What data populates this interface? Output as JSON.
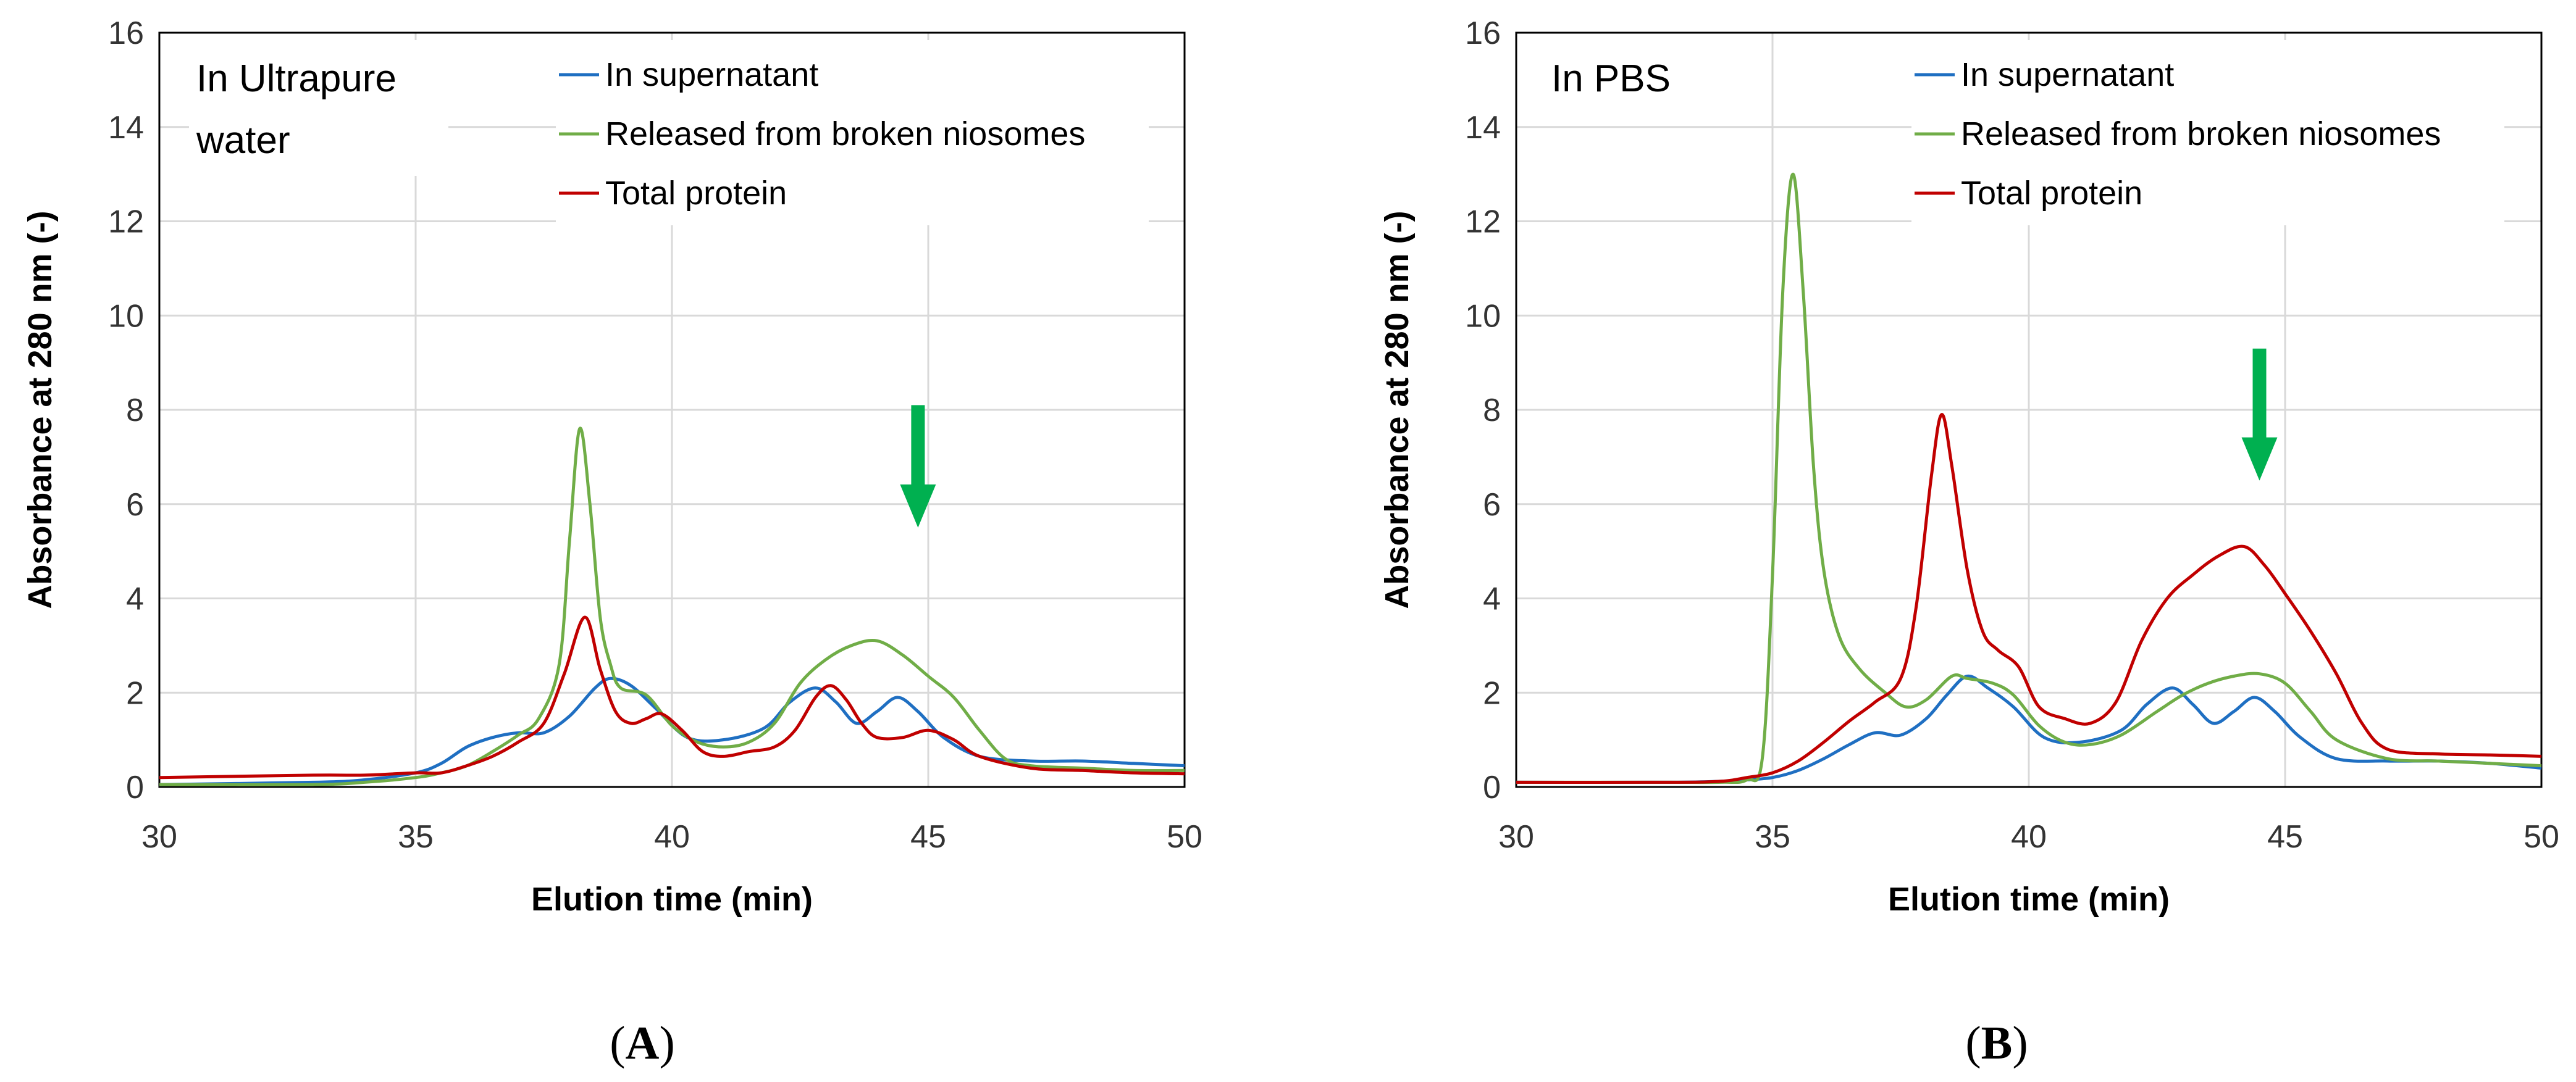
{
  "chart_data": [
    {
      "type": "line",
      "panel_label": "A",
      "title": "In Ultrapure water",
      "title_lines": [
        "In Ultrapure",
        "water"
      ],
      "xlabel": "Elution time (min)",
      "ylabel": "Absorbance at 280 nm (-)",
      "xlim": [
        30,
        50
      ],
      "ylim": [
        0,
        16
      ],
      "xticks": [
        30,
        35,
        40,
        45,
        50
      ],
      "yticks": [
        0,
        2,
        4,
        6,
        8,
        10,
        12,
        14,
        16
      ],
      "grid": true,
      "legend_position": "top-center",
      "arrow": {
        "x": 44.8,
        "y_from": 8.1,
        "y_to": 5.5,
        "color": "#00b050"
      },
      "series": [
        {
          "name": "In supernatant",
          "color": "#1f6fc2",
          "x": [
            30,
            33,
            34,
            35,
            35.5,
            36,
            36.5,
            37,
            37.5,
            38,
            38.5,
            38.8,
            39.2,
            39.7,
            40.3,
            41,
            41.8,
            42.3,
            42.8,
            43.2,
            43.6,
            44,
            44.4,
            44.8,
            45.3,
            46,
            47,
            48,
            49,
            50
          ],
          "y": [
            0.05,
            0.1,
            0.15,
            0.3,
            0.5,
            0.85,
            1.05,
            1.15,
            1.15,
            1.5,
            2.1,
            2.3,
            2.15,
            1.65,
            1.05,
            1.0,
            1.25,
            1.8,
            2.1,
            1.8,
            1.35,
            1.6,
            1.9,
            1.6,
            1.05,
            0.65,
            0.55,
            0.55,
            0.5,
            0.45
          ]
        },
        {
          "name": "Released from broken niosomes",
          "color": "#70ad47",
          "x": [
            30,
            33,
            34,
            35,
            35.5,
            36,
            36.5,
            37,
            37.4,
            37.8,
            38,
            38.2,
            38.4,
            38.6,
            38.8,
            39,
            39.5,
            40,
            40.5,
            41,
            41.5,
            42,
            42.5,
            43,
            43.5,
            44,
            44.5,
            45,
            45.5,
            46,
            46.5,
            47,
            48,
            49,
            50
          ],
          "y": [
            0.05,
            0.05,
            0.1,
            0.2,
            0.3,
            0.45,
            0.75,
            1.1,
            1.45,
            2.6,
            5.2,
            7.6,
            6.0,
            3.6,
            2.6,
            2.1,
            1.95,
            1.3,
            0.95,
            0.85,
            0.95,
            1.35,
            2.2,
            2.7,
            3.0,
            3.1,
            2.8,
            2.35,
            1.9,
            1.2,
            0.6,
            0.45,
            0.4,
            0.35,
            0.35
          ]
        },
        {
          "name": "Total protein",
          "color": "#c00000",
          "x": [
            30,
            33,
            34,
            35,
            35.5,
            36,
            36.5,
            37,
            37.5,
            37.9,
            38.3,
            38.6,
            38.9,
            39.2,
            39.5,
            39.8,
            40.2,
            40.6,
            41,
            41.5,
            42,
            42.4,
            42.8,
            43.1,
            43.4,
            43.7,
            44,
            44.5,
            45,
            45.5,
            46,
            47,
            48,
            49,
            50
          ],
          "y": [
            0.2,
            0.25,
            0.25,
            0.3,
            0.3,
            0.45,
            0.65,
            0.95,
            1.35,
            2.4,
            3.6,
            2.5,
            1.6,
            1.35,
            1.45,
            1.55,
            1.2,
            0.75,
            0.65,
            0.75,
            0.85,
            1.2,
            1.9,
            2.15,
            1.85,
            1.35,
            1.05,
            1.05,
            1.2,
            1.0,
            0.65,
            0.4,
            0.35,
            0.3,
            0.28
          ]
        }
      ]
    },
    {
      "type": "line",
      "panel_label": "B",
      "title": "In PBS",
      "title_lines": [
        "In PBS"
      ],
      "xlabel": "Elution time (min)",
      "ylabel": "Absorbance at 280 nm (-)",
      "xlim": [
        30,
        50
      ],
      "ylim": [
        0,
        16
      ],
      "xticks": [
        30,
        35,
        40,
        45,
        50
      ],
      "yticks": [
        0,
        2,
        4,
        6,
        8,
        10,
        12,
        14,
        16
      ],
      "grid": true,
      "legend_position": "top-center",
      "arrow": {
        "x": 44.5,
        "y_from": 9.3,
        "y_to": 6.5,
        "color": "#00b050"
      },
      "series": [
        {
          "name": "In supernatant",
          "color": "#1f6fc2",
          "x": [
            30,
            33,
            34,
            34.5,
            35,
            35.5,
            36,
            36.5,
            37,
            37.5,
            38,
            38.4,
            38.8,
            39.2,
            39.7,
            40.3,
            41,
            41.8,
            42.3,
            42.8,
            43.2,
            43.6,
            44,
            44.4,
            44.8,
            45.3,
            46,
            47,
            48,
            49,
            50
          ],
          "y": [
            0.1,
            0.1,
            0.12,
            0.15,
            0.2,
            0.35,
            0.6,
            0.9,
            1.15,
            1.1,
            1.45,
            1.95,
            2.35,
            2.1,
            1.7,
            1.05,
            0.95,
            1.2,
            1.75,
            2.1,
            1.75,
            1.35,
            1.6,
            1.9,
            1.6,
            1.05,
            0.6,
            0.55,
            0.55,
            0.5,
            0.4
          ]
        },
        {
          "name": "Released from broken niosomes",
          "color": "#70ad47",
          "x": [
            30,
            33,
            34,
            34.5,
            34.8,
            35,
            35.2,
            35.4,
            35.6,
            35.8,
            36,
            36.3,
            36.7,
            37.2,
            37.6,
            38,
            38.5,
            38.8,
            39.3,
            39.7,
            40.2,
            40.7,
            41.2,
            41.8,
            42.5,
            43,
            43.5,
            44,
            44.5,
            45,
            45.5,
            46,
            47,
            48,
            49,
            50
          ],
          "y": [
            0.1,
            0.1,
            0.1,
            0.15,
            0.6,
            4.5,
            10.5,
            13.0,
            10.5,
            6.8,
            4.6,
            3.2,
            2.5,
            2.0,
            1.7,
            1.85,
            2.35,
            2.3,
            2.2,
            1.95,
            1.3,
            0.95,
            0.9,
            1.1,
            1.6,
            1.95,
            2.2,
            2.35,
            2.4,
            2.2,
            1.6,
            1.0,
            0.6,
            0.55,
            0.5,
            0.45
          ]
        },
        {
          "name": "Total protein",
          "color": "#c00000",
          "x": [
            30,
            33,
            34,
            34.5,
            35,
            35.5,
            36,
            36.5,
            37,
            37.5,
            37.8,
            38.1,
            38.3,
            38.5,
            38.8,
            39.1,
            39.4,
            39.8,
            40.2,
            40.7,
            41.2,
            41.7,
            42.2,
            42.7,
            43.2,
            43.7,
            44.2,
            44.6,
            45,
            45.5,
            46,
            46.5,
            47,
            48,
            49,
            50
          ],
          "y": [
            0.1,
            0.1,
            0.12,
            0.2,
            0.3,
            0.55,
            0.95,
            1.4,
            1.8,
            2.3,
            3.8,
            6.6,
            7.9,
            6.8,
            4.6,
            3.3,
            2.9,
            2.55,
            1.7,
            1.45,
            1.35,
            1.8,
            3.1,
            4.0,
            4.5,
            4.9,
            5.1,
            4.7,
            4.1,
            3.3,
            2.4,
            1.35,
            0.8,
            0.7,
            0.68,
            0.65
          ]
        }
      ]
    }
  ]
}
